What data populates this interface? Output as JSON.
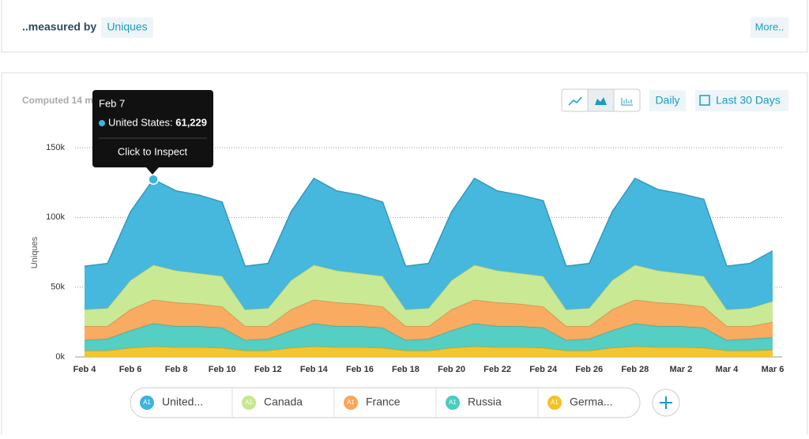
{
  "header": {
    "measured_by": "..measured by",
    "metric": "Uniques",
    "more": "More.."
  },
  "controls": {
    "computed": "Computed 14 m",
    "interval": "Daily",
    "range": "Last 30 Days"
  },
  "tooltip": {
    "date": "Feb 7",
    "series": "United States:",
    "value": "61,229",
    "action": "Click to Inspect"
  },
  "legend_badge": "A1",
  "chart_data": {
    "type": "stacked_area",
    "y_label": "Uniques",
    "categories": [
      "Feb 4",
      null,
      "Feb 6",
      null,
      "Feb 8",
      null,
      "Feb 10",
      null,
      "Feb 12",
      null,
      "Feb 14",
      null,
      "Feb 16",
      null,
      "Feb 18",
      null,
      "Feb 20",
      null,
      "Feb 22",
      null,
      "Feb 24",
      null,
      "Feb 26",
      null,
      "Feb 28",
      null,
      "Mar 2",
      null,
      "Mar 4",
      null,
      "Mar 6"
    ],
    "ylim": [
      0,
      150000
    ],
    "yticks": [
      {
        "value": 0,
        "label": "0k"
      },
      {
        "value": 50000,
        "label": "50k"
      },
      {
        "value": 100000,
        "label": "100k"
      },
      {
        "value": 150000,
        "label": "150k"
      }
    ],
    "grid": true,
    "series": [
      {
        "name": "United...",
        "color": "#3cb4dc",
        "values": [
          31000,
          32000,
          49000,
          61229,
          57000,
          56000,
          53000,
          31000,
          32000,
          49000,
          62000,
          57000,
          56000,
          53000,
          31000,
          32000,
          49000,
          62000,
          57000,
          56000,
          54000,
          31000,
          32000,
          49000,
          62000,
          58000,
          57000,
          55000,
          31000,
          32000,
          36000
        ]
      },
      {
        "name": "Canada",
        "color": "#c6e88e",
        "values": [
          12000,
          13000,
          21000,
          25000,
          23000,
          22000,
          22000,
          12000,
          13000,
          21000,
          25000,
          23000,
          22000,
          22000,
          12000,
          13000,
          21000,
          25000,
          23000,
          22000,
          22000,
          12000,
          13000,
          21000,
          25000,
          23000,
          22000,
          22000,
          12000,
          13000,
          15000
        ]
      },
      {
        "name": "France",
        "color": "#f9a65a",
        "values": [
          10000,
          9000,
          15000,
          17000,
          17000,
          16000,
          15000,
          10000,
          9000,
          15000,
          17000,
          17000,
          16000,
          15000,
          10000,
          9000,
          15000,
          17000,
          17000,
          16000,
          15000,
          10000,
          9000,
          15000,
          17000,
          17000,
          16000,
          15000,
          10000,
          9000,
          11000
        ]
      },
      {
        "name": "Russia",
        "color": "#4ccbc0",
        "values": [
          7500,
          8500,
          12500,
          16500,
          15000,
          15000,
          14500,
          7500,
          8500,
          12500,
          16500,
          15000,
          15000,
          14500,
          7500,
          8500,
          12500,
          16500,
          15000,
          15000,
          14500,
          7500,
          8500,
          12500,
          16500,
          15000,
          15000,
          14500,
          7500,
          8500,
          9000
        ]
      },
      {
        "name": "Germa...",
        "color": "#f6c222",
        "values": [
          4500,
          4500,
          6500,
          7500,
          7000,
          7000,
          6500,
          4500,
          4500,
          6500,
          7500,
          7000,
          7000,
          6500,
          4500,
          4500,
          6500,
          7500,
          7000,
          7000,
          6500,
          4500,
          4500,
          6500,
          7500,
          7000,
          7000,
          6500,
          4500,
          4500,
          5000
        ]
      }
    ]
  }
}
